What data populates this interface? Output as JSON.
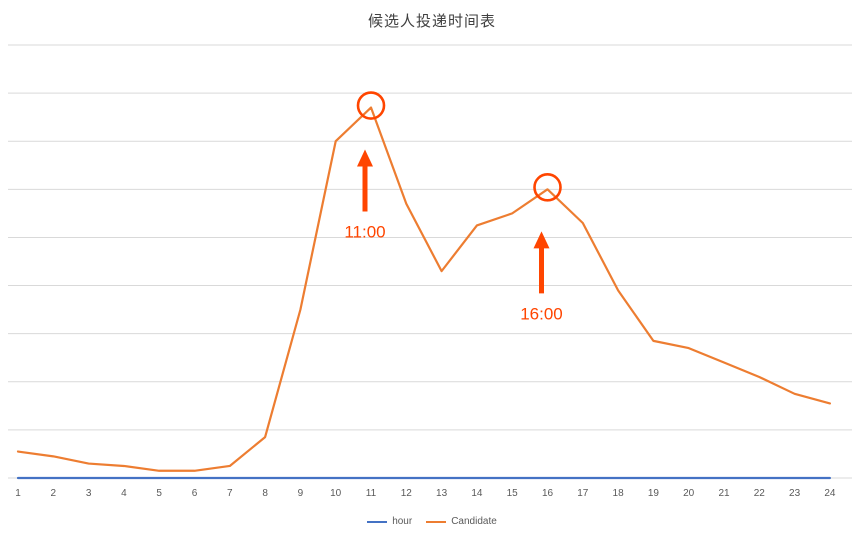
{
  "chart_data": {
    "type": "line",
    "title": "候选人投递时间表",
    "xlabel": "",
    "ylabel": "",
    "ylim": [
      0,
      90
    ],
    "grid": true,
    "legend_position": "bottom",
    "x": [
      1,
      2,
      3,
      4,
      5,
      6,
      7,
      8,
      9,
      10,
      11,
      12,
      13,
      14,
      15,
      16,
      17,
      18,
      19,
      20,
      21,
      22,
      23,
      24
    ],
    "series": [
      {
        "name": "hour",
        "color": "#4472C4",
        "values": [
          0,
          0,
          0,
          0,
          0,
          0,
          0,
          0,
          0,
          0,
          0,
          0,
          0,
          0,
          0,
          0,
          0,
          0,
          0,
          0,
          0,
          0,
          0,
          0
        ]
      },
      {
        "name": "Candidate",
        "color": "#ED7D31",
        "values": [
          5.5,
          4.5,
          3,
          2.5,
          1.5,
          1.5,
          2.5,
          8.5,
          35,
          70,
          77,
          57,
          43,
          52.5,
          55,
          60,
          53,
          39,
          28.5,
          27,
          24,
          21,
          17.5,
          15.5
        ]
      }
    ],
    "annotations": [
      {
        "hour": 11,
        "value": 77,
        "label": "11:00",
        "color": "#FF4500"
      },
      {
        "hour": 16,
        "value": 60,
        "label": "16:00",
        "color": "#FF4500"
      }
    ]
  },
  "colors": {
    "gridline": "#D9D9D9",
    "axis_text": "#595959",
    "title_text": "#404040"
  }
}
